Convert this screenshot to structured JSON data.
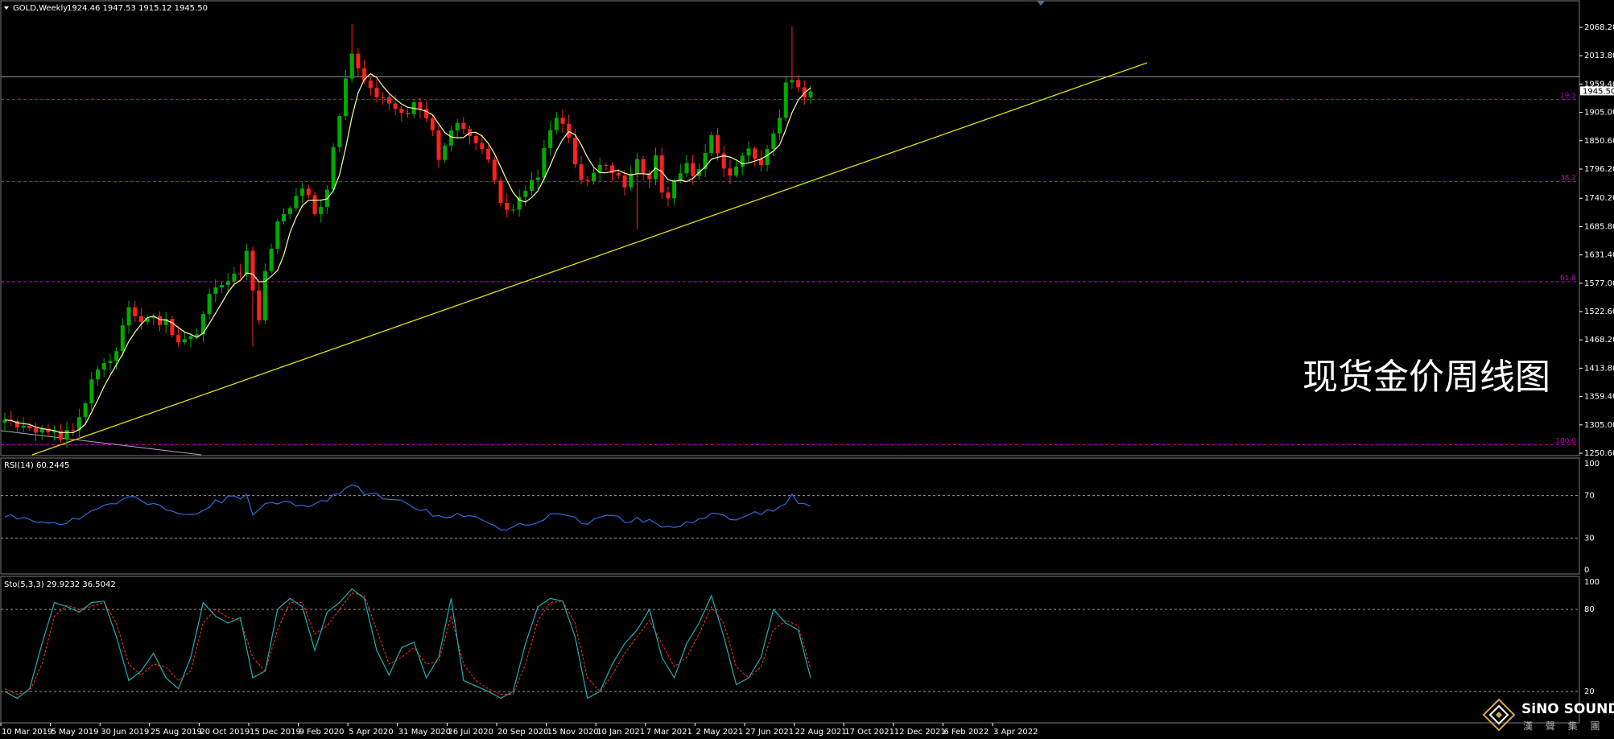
{
  "header": {
    "symbol": "GOLD,Weekly",
    "ohlc": "1924.46 1947.53 1915.12 1945.50"
  },
  "watermark": "现货金价周线图",
  "brand": {
    "name": "SiNO SOUND",
    "sub": "漢 聲 集 團"
  },
  "colors": {
    "background": "#000000",
    "bull_candle": "#00aa00",
    "bear_candle": "#ff2020",
    "ma_line": "#ffff99",
    "trendline": "#e0e000",
    "fib_line": "#c000c0",
    "rsi_line": "#2f6bd8",
    "sto_main": "#20b0b0",
    "sto_signal": "#ff3030",
    "grid_level": "#9a9a9a"
  },
  "price_axis": {
    "ticks": [
      "2068.20",
      "2013.80",
      "1959.40",
      "1905.00",
      "1850.60",
      "1796.20",
      "1740.20",
      "1685.80",
      "1631.40",
      "1577.00",
      "1522.60",
      "1468.20",
      "1413.80",
      "1359.40",
      "1305.00",
      "1250.60"
    ],
    "current_price": "1945.50"
  },
  "fib_levels": [
    {
      "label": "19.1",
      "price": 1930
    },
    {
      "label": "38.2",
      "price": 1772
    },
    {
      "label": "61.8",
      "price": 1580
    },
    {
      "label": "100.0",
      "price": 1267
    }
  ],
  "rsi": {
    "label": "RSI(14) 60.2445",
    "scale": [
      "100",
      "70",
      "30",
      "0"
    ]
  },
  "stochastic": {
    "label": "Sto(5,3,3) 29.9232 36.5042",
    "scale": [
      "100",
      "80",
      "20"
    ]
  },
  "date_axis": [
    "10 Mar 2019",
    "5 May 2019",
    "30 Jun 2019",
    "25 Aug 2019",
    "20 Oct 2019",
    "15 Dec 2019",
    "9 Feb 2020",
    "5 Apr 2020",
    "31 May 2020",
    "26 Jul 2020",
    "20 Sep 2020",
    "15 Nov 2020",
    "10 Jan 2021",
    "7 Mar 2021",
    "2 May 2021",
    "27 Jun 2021",
    "22 Aug 2021",
    "17 Oct 2021",
    "12 Dec 2021",
    "6 Feb 2022",
    "3 Apr 2022"
  ],
  "chart_data": {
    "type": "candlestick",
    "title": "GOLD,Weekly",
    "ylim": [
      1240,
      2095
    ],
    "weekly_close_path": [
      [
        0,
        1312
      ],
      [
        3,
        1300
      ],
      [
        6,
        1292
      ],
      [
        8,
        1287
      ],
      [
        9,
        1284
      ],
      [
        10,
        1290
      ],
      [
        11,
        1300
      ],
      [
        12,
        1325
      ],
      [
        13,
        1350
      ],
      [
        14,
        1385
      ],
      [
        15,
        1410
      ],
      [
        16,
        1420
      ],
      [
        17,
        1435
      ],
      [
        18,
        1445
      ],
      [
        19,
        1500
      ],
      [
        20,
        1525
      ],
      [
        21,
        1512
      ],
      [
        22,
        1505
      ],
      [
        23,
        1515
      ],
      [
        24,
        1510
      ],
      [
        25,
        1495
      ],
      [
        26,
        1505
      ],
      [
        27,
        1480
      ],
      [
        28,
        1465
      ],
      [
        29,
        1465
      ],
      [
        30,
        1470
      ],
      [
        31,
        1478
      ],
      [
        32,
        1510
      ],
      [
        33,
        1550
      ],
      [
        34,
        1570
      ],
      [
        35,
        1580
      ],
      [
        36,
        1585
      ],
      [
        37,
        1590
      ],
      [
        38,
        1600
      ],
      [
        39,
        1640
      ],
      [
        40,
        1570
      ],
      [
        41,
        1500
      ],
      [
        42,
        1600
      ],
      [
        43,
        1650
      ],
      [
        44,
        1690
      ],
      [
        45,
        1715
      ],
      [
        46,
        1730
      ],
      [
        47,
        1740
      ],
      [
        48,
        1755
      ],
      [
        49,
        1745
      ],
      [
        50,
        1705
      ],
      [
        51,
        1730
      ],
      [
        52,
        1760
      ],
      [
        53,
        1830
      ],
      [
        54,
        1900
      ],
      [
        55,
        1965
      ],
      [
        56,
        2010
      ],
      [
        57,
        1990
      ],
      [
        58,
        1960
      ],
      [
        59,
        1955
      ],
      [
        60,
        1940
      ],
      [
        61,
        1930
      ],
      [
        62,
        1915
      ],
      [
        63,
        1905
      ],
      [
        64,
        1900
      ],
      [
        65,
        1910
      ],
      [
        66,
        1930
      ],
      [
        67,
        1905
      ],
      [
        68,
        1890
      ],
      [
        69,
        1870
      ],
      [
        70,
        1820
      ],
      [
        71,
        1840
      ],
      [
        72,
        1865
      ],
      [
        73,
        1890
      ],
      [
        74,
        1880
      ],
      [
        75,
        1855
      ],
      [
        76,
        1845
      ],
      [
        77,
        1830
      ],
      [
        78,
        1810
      ],
      [
        79,
        1775
      ],
      [
        80,
        1730
      ],
      [
        81,
        1715
      ],
      [
        82,
        1720
      ],
      [
        83,
        1735
      ],
      [
        84,
        1750
      ],
      [
        85,
        1770
      ],
      [
        86,
        1780
      ],
      [
        87,
        1835
      ],
      [
        88,
        1875
      ],
      [
        89,
        1900
      ],
      [
        90,
        1880
      ],
      [
        91,
        1855
      ],
      [
        92,
        1810
      ],
      [
        93,
        1780
      ],
      [
        94,
        1770
      ],
      [
        95,
        1785
      ],
      [
        96,
        1800
      ],
      [
        97,
        1810
      ],
      [
        98,
        1790
      ],
      [
        99,
        1780
      ],
      [
        100,
        1760
      ],
      [
        101,
        1790
      ],
      [
        102,
        1810
      ],
      [
        103,
        1795
      ],
      [
        104,
        1780
      ],
      [
        105,
        1815
      ],
      [
        106,
        1760
      ],
      [
        107,
        1735
      ],
      [
        108,
        1780
      ],
      [
        109,
        1790
      ],
      [
        110,
        1810
      ],
      [
        111,
        1785
      ],
      [
        112,
        1800
      ],
      [
        113,
        1830
      ],
      [
        114,
        1855
      ],
      [
        115,
        1820
      ],
      [
        116,
        1800
      ],
      [
        117,
        1790
      ],
      [
        118,
        1800
      ],
      [
        119,
        1815
      ],
      [
        120,
        1830
      ],
      [
        121,
        1820
      ],
      [
        122,
        1810
      ],
      [
        123,
        1830
      ],
      [
        124,
        1860
      ],
      [
        125,
        1900
      ],
      [
        126,
        1955
      ],
      [
        127,
        1975
      ],
      [
        128,
        1955
      ],
      [
        129,
        1935
      ],
      [
        130,
        1945
      ]
    ]
  },
  "rsi_data": {
    "path": [
      [
        0,
        52
      ],
      [
        3,
        49
      ],
      [
        6,
        45
      ],
      [
        9,
        44
      ],
      [
        12,
        49
      ],
      [
        14,
        55
      ],
      [
        16,
        60
      ],
      [
        18,
        62
      ],
      [
        20,
        68
      ],
      [
        22,
        65
      ],
      [
        24,
        62
      ],
      [
        26,
        58
      ],
      [
        28,
        52
      ],
      [
        30,
        50
      ],
      [
        32,
        56
      ],
      [
        34,
        64
      ],
      [
        36,
        67
      ],
      [
        38,
        68
      ],
      [
        39,
        72
      ],
      [
        40,
        52
      ],
      [
        42,
        60
      ],
      [
        44,
        63
      ],
      [
        46,
        62
      ],
      [
        48,
        61
      ],
      [
        50,
        60
      ],
      [
        52,
        67
      ],
      [
        54,
        72
      ],
      [
        56,
        80
      ],
      [
        58,
        72
      ],
      [
        60,
        70
      ],
      [
        62,
        66
      ],
      [
        64,
        64
      ],
      [
        66,
        60
      ],
      [
        68,
        55
      ],
      [
        70,
        50
      ],
      [
        72,
        52
      ],
      [
        74,
        50
      ],
      [
        76,
        48
      ],
      [
        78,
        44
      ],
      [
        80,
        38
      ],
      [
        82,
        40
      ],
      [
        84,
        44
      ],
      [
        86,
        46
      ],
      [
        88,
        52
      ],
      [
        90,
        54
      ],
      [
        92,
        48
      ],
      [
        94,
        44
      ],
      [
        96,
        48
      ],
      [
        98,
        52
      ],
      [
        100,
        45
      ],
      [
        102,
        48
      ],
      [
        104,
        46
      ],
      [
        106,
        38
      ],
      [
        108,
        42
      ],
      [
        110,
        45
      ],
      [
        112,
        48
      ],
      [
        114,
        54
      ],
      [
        116,
        50
      ],
      [
        118,
        49
      ],
      [
        120,
        52
      ],
      [
        122,
        54
      ],
      [
        124,
        55
      ],
      [
        126,
        64
      ],
      [
        127,
        70
      ],
      [
        128,
        62
      ],
      [
        130,
        60
      ]
    ]
  },
  "sto_data": {
    "main": [
      [
        0,
        20
      ],
      [
        2,
        15
      ],
      [
        4,
        22
      ],
      [
        6,
        55
      ],
      [
        8,
        85
      ],
      [
        10,
        82
      ],
      [
        12,
        78
      ],
      [
        14,
        85
      ],
      [
        16,
        86
      ],
      [
        18,
        60
      ],
      [
        20,
        28
      ],
      [
        22,
        35
      ],
      [
        24,
        48
      ],
      [
        26,
        30
      ],
      [
        28,
        22
      ],
      [
        30,
        45
      ],
      [
        32,
        85
      ],
      [
        34,
        75
      ],
      [
        36,
        70
      ],
      [
        38,
        74
      ],
      [
        40,
        30
      ],
      [
        42,
        35
      ],
      [
        44,
        80
      ],
      [
        46,
        88
      ],
      [
        48,
        82
      ],
      [
        50,
        50
      ],
      [
        52,
        78
      ],
      [
        54,
        85
      ],
      [
        56,
        95
      ],
      [
        58,
        88
      ],
      [
        60,
        50
      ],
      [
        62,
        32
      ],
      [
        64,
        52
      ],
      [
        66,
        56
      ],
      [
        68,
        30
      ],
      [
        70,
        45
      ],
      [
        72,
        88
      ],
      [
        74,
        28
      ],
      [
        76,
        24
      ],
      [
        78,
        20
      ],
      [
        80,
        15
      ],
      [
        82,
        20
      ],
      [
        84,
        55
      ],
      [
        86,
        82
      ],
      [
        88,
        88
      ],
      [
        90,
        86
      ],
      [
        92,
        60
      ],
      [
        94,
        15
      ],
      [
        96,
        20
      ],
      [
        98,
        40
      ],
      [
        100,
        55
      ],
      [
        102,
        65
      ],
      [
        104,
        80
      ],
      [
        106,
        45
      ],
      [
        108,
        30
      ],
      [
        110,
        55
      ],
      [
        112,
        70
      ],
      [
        114,
        90
      ],
      [
        116,
        60
      ],
      [
        118,
        25
      ],
      [
        120,
        30
      ],
      [
        122,
        45
      ],
      [
        124,
        80
      ],
      [
        126,
        70
      ],
      [
        128,
        65
      ],
      [
        130,
        30
      ]
    ],
    "signal": [
      [
        0,
        22
      ],
      [
        2,
        18
      ],
      [
        4,
        20
      ],
      [
        6,
        40
      ],
      [
        8,
        75
      ],
      [
        10,
        83
      ],
      [
        12,
        80
      ],
      [
        14,
        82
      ],
      [
        16,
        85
      ],
      [
        18,
        70
      ],
      [
        20,
        40
      ],
      [
        22,
        32
      ],
      [
        24,
        40
      ],
      [
        26,
        38
      ],
      [
        28,
        28
      ],
      [
        30,
        35
      ],
      [
        32,
        70
      ],
      [
        34,
        80
      ],
      [
        36,
        74
      ],
      [
        38,
        72
      ],
      [
        40,
        45
      ],
      [
        42,
        35
      ],
      [
        44,
        65
      ],
      [
        46,
        85
      ],
      [
        48,
        85
      ],
      [
        50,
        62
      ],
      [
        52,
        68
      ],
      [
        54,
        80
      ],
      [
        56,
        92
      ],
      [
        58,
        90
      ],
      [
        60,
        65
      ],
      [
        62,
        40
      ],
      [
        64,
        45
      ],
      [
        66,
        52
      ],
      [
        68,
        40
      ],
      [
        70,
        42
      ],
      [
        72,
        75
      ],
      [
        74,
        40
      ],
      [
        76,
        28
      ],
      [
        78,
        22
      ],
      [
        80,
        18
      ],
      [
        82,
        18
      ],
      [
        84,
        40
      ],
      [
        86,
        72
      ],
      [
        88,
        85
      ],
      [
        90,
        86
      ],
      [
        92,
        70
      ],
      [
        94,
        30
      ],
      [
        96,
        20
      ],
      [
        98,
        32
      ],
      [
        100,
        48
      ],
      [
        102,
        60
      ],
      [
        104,
        72
      ],
      [
        106,
        55
      ],
      [
        108,
        38
      ],
      [
        110,
        45
      ],
      [
        112,
        62
      ],
      [
        114,
        82
      ],
      [
        116,
        70
      ],
      [
        118,
        38
      ],
      [
        120,
        30
      ],
      [
        122,
        38
      ],
      [
        124,
        65
      ],
      [
        126,
        72
      ],
      [
        128,
        68
      ],
      [
        130,
        36.5
      ]
    ]
  }
}
